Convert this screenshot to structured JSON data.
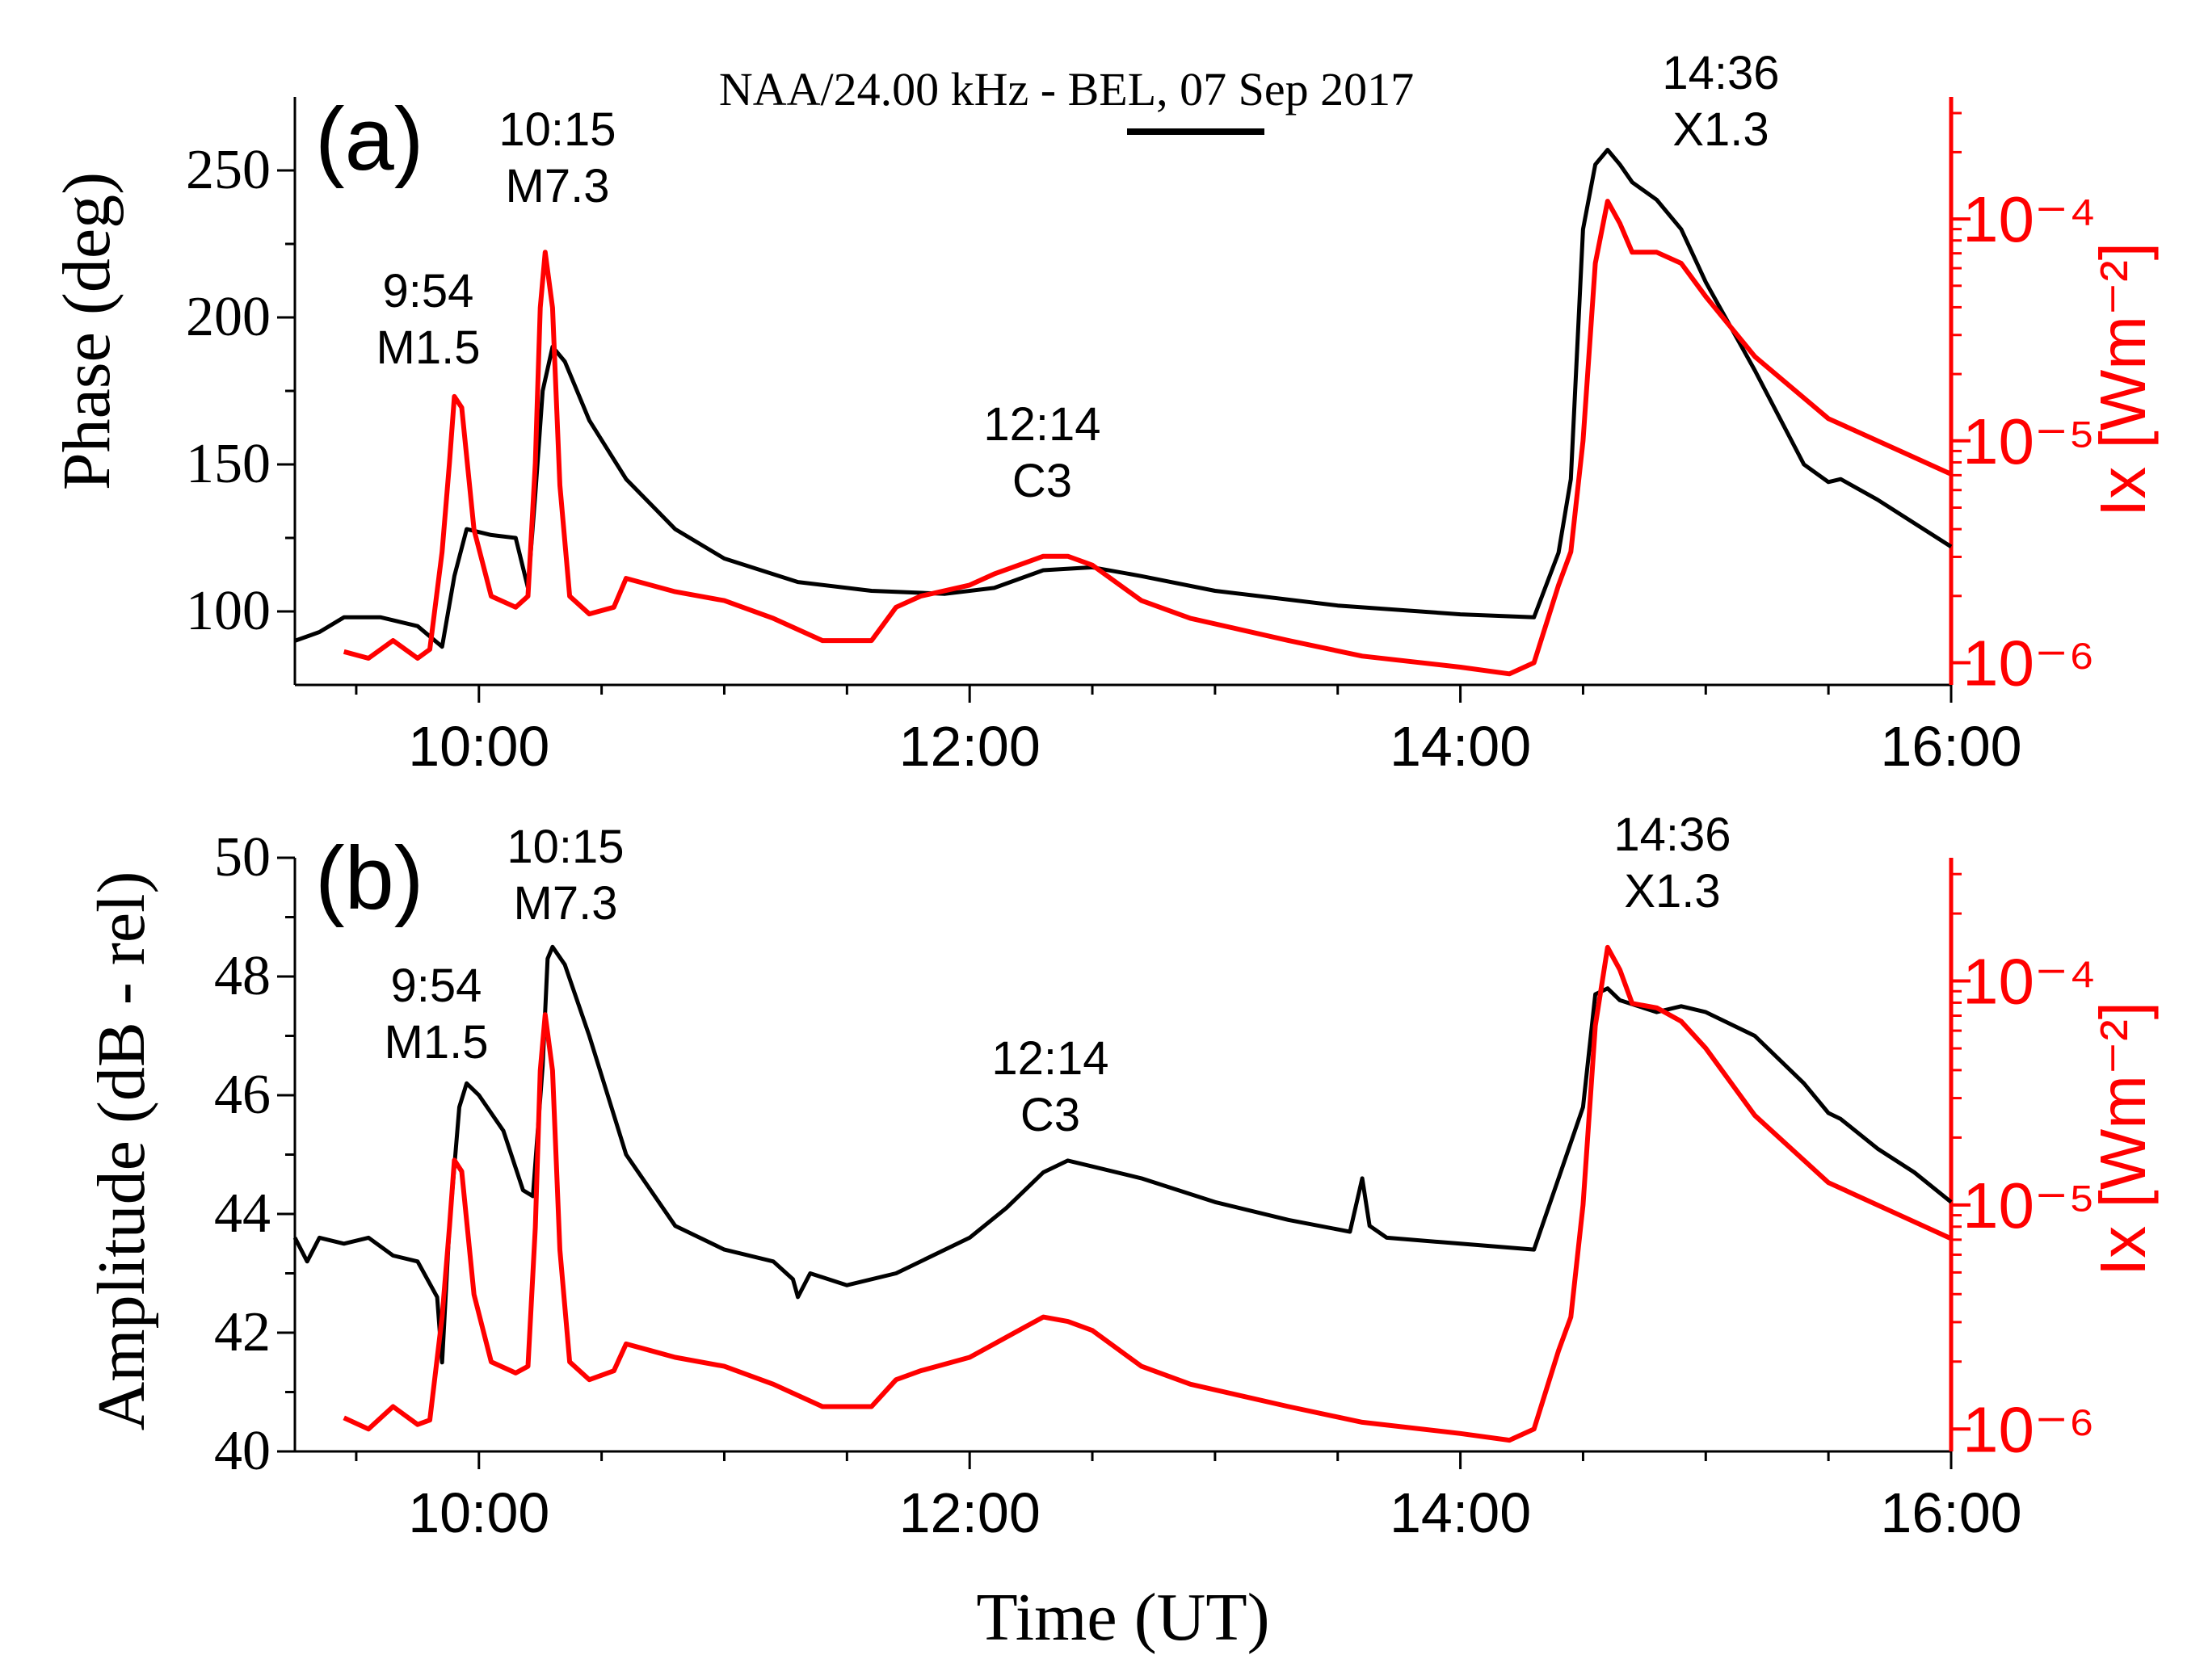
{
  "figure_title": "NAA/24.00 kHz - BEL,  07 Sep 2017",
  "x_axis_label": "Time (UT)",
  "colors": {
    "vlf": "#000000",
    "xray": "#ff0000"
  },
  "chart_data": [
    {
      "type": "line",
      "panel_label": "(a)",
      "xlabel": "Time (UT)",
      "ylabel": "Phase (deg)",
      "y2label": "Ix [Wm⁻²]",
      "xlim": [
        9.25,
        16.0
      ],
      "ylim": [
        75,
        275
      ],
      "y2lim_log10": [
        -6.1,
        -3.45
      ],
      "x_ticks": [
        "10:00",
        "12:00",
        "14:00",
        "16:00"
      ],
      "y_ticks": [
        100,
        150,
        200,
        250
      ],
      "y2_ticks": [
        "10⁻⁶",
        "10⁻⁵",
        "10⁻⁴"
      ],
      "annotations": [
        {
          "time": "9:54",
          "class": "M1.5"
        },
        {
          "time": "10:15",
          "class": "M7.3"
        },
        {
          "time": "12:14",
          "class": "C3"
        },
        {
          "time": "14:36",
          "class": "X1.3"
        }
      ],
      "series": [
        {
          "name": "Phase",
          "axis": "left",
          "x": [
            9.25,
            9.35,
            9.45,
            9.6,
            9.75,
            9.85,
            9.9,
            9.95,
            10.05,
            10.15,
            10.2,
            10.23,
            10.26,
            10.3,
            10.35,
            10.45,
            10.6,
            10.8,
            11.0,
            11.3,
            11.6,
            11.9,
            12.1,
            12.3,
            12.5,
            12.7,
            13.0,
            13.5,
            14.0,
            14.3,
            14.4,
            14.45,
            14.5,
            14.55,
            14.6,
            14.65,
            14.7,
            14.8,
            14.9,
            15.0,
            15.2,
            15.4,
            15.5,
            15.55,
            15.7,
            16.0
          ],
          "values": [
            90,
            93,
            98,
            98,
            95,
            88,
            112,
            128,
            126,
            125,
            108,
            140,
            175,
            190,
            185,
            165,
            145,
            128,
            118,
            110,
            107,
            106,
            108,
            114,
            115,
            112,
            107,
            102,
            99,
            98,
            120,
            145,
            230,
            252,
            257,
            252,
            246,
            240,
            230,
            212,
            182,
            150,
            144,
            145,
            138,
            122
          ]
        },
        {
          "name": "Ix",
          "axis": "right",
          "x": [
            9.45,
            9.55,
            9.65,
            9.75,
            9.8,
            9.85,
            9.88,
            9.9,
            9.93,
            9.98,
            10.05,
            10.15,
            10.2,
            10.23,
            10.25,
            10.27,
            10.3,
            10.33,
            10.37,
            10.45,
            10.55,
            10.6,
            10.7,
            10.8,
            11.0,
            11.2,
            11.4,
            11.6,
            11.7,
            11.8,
            12.0,
            12.1,
            12.2,
            12.3,
            12.4,
            12.5,
            12.7,
            12.9,
            13.1,
            13.3,
            13.6,
            14.0,
            14.2,
            14.3,
            14.4,
            14.45,
            14.5,
            14.55,
            14.6,
            14.65,
            14.7,
            14.8,
            14.9,
            15.0,
            15.2,
            15.5,
            15.8,
            16.0
          ],
          "values": [
            -5.95,
            -5.98,
            -5.9,
            -5.98,
            -5.94,
            -5.5,
            -5.1,
            -4.8,
            -4.85,
            -5.4,
            -5.7,
            -5.75,
            -5.7,
            -5.1,
            -4.4,
            -4.15,
            -4.4,
            -5.2,
            -5.7,
            -5.78,
            -5.75,
            -5.62,
            -5.65,
            -5.68,
            -5.72,
            -5.8,
            -5.9,
            -5.9,
            -5.75,
            -5.7,
            -5.65,
            -5.6,
            -5.56,
            -5.52,
            -5.52,
            -5.56,
            -5.72,
            -5.8,
            -5.85,
            -5.9,
            -5.97,
            -6.02,
            -6.05,
            -6.0,
            -5.65,
            -5.5,
            -5.0,
            -4.2,
            -3.92,
            -4.02,
            -4.15,
            -4.15,
            -4.2,
            -4.35,
            -4.62,
            -4.9,
            -5.05,
            -5.15
          ]
        }
      ]
    },
    {
      "type": "line",
      "panel_label": "(b)",
      "xlabel": "Time (UT)",
      "ylabel": "Amplitude (dB - rel)",
      "y2label": "Ix [Wm⁻²]",
      "xlim": [
        9.25,
        16.0
      ],
      "ylim": [
        40,
        50
      ],
      "y2lim_log10": [
        -6.1,
        -3.45
      ],
      "x_ticks": [
        "10:00",
        "12:00",
        "14:00",
        "16:00"
      ],
      "y_ticks": [
        40,
        42,
        44,
        46,
        48,
        50
      ],
      "y2_ticks": [
        "10⁻⁶",
        "10⁻⁵",
        "10⁻⁴"
      ],
      "annotations": [
        {
          "time": "9:54",
          "class": "M1.5"
        },
        {
          "time": "10:15",
          "class": "M7.3"
        },
        {
          "time": "12:14",
          "class": "C3"
        },
        {
          "time": "14:36",
          "class": "X1.3"
        }
      ],
      "series": [
        {
          "name": "Amplitude",
          "axis": "left",
          "x": [
            9.25,
            9.3,
            9.35,
            9.45,
            9.55,
            9.65,
            9.75,
            9.83,
            9.85,
            9.88,
            9.92,
            9.95,
            10.0,
            10.1,
            10.18,
            10.22,
            10.26,
            10.28,
            10.3,
            10.35,
            10.45,
            10.6,
            10.8,
            11.0,
            11.2,
            11.28,
            11.3,
            11.35,
            11.5,
            11.7,
            12.0,
            12.15,
            12.3,
            12.4,
            12.5,
            12.7,
            13.0,
            13.3,
            13.55,
            13.6,
            13.63,
            13.7,
            14.0,
            14.3,
            14.4,
            14.5,
            14.55,
            14.6,
            14.65,
            14.8,
            14.9,
            15.0,
            15.2,
            15.4,
            15.5,
            15.55,
            15.7,
            15.85,
            16.0
          ],
          "values": [
            43.6,
            43.2,
            43.6,
            43.5,
            43.6,
            43.3,
            43.2,
            42.6,
            41.5,
            43.8,
            45.8,
            46.2,
            46.0,
            45.4,
            44.4,
            44.3,
            46.5,
            48.3,
            48.5,
            48.2,
            47.0,
            45.0,
            43.8,
            43.4,
            43.2,
            42.9,
            42.6,
            43.0,
            42.8,
            43.0,
            43.6,
            44.1,
            44.7,
            44.9,
            44.8,
            44.6,
            44.2,
            43.9,
            43.7,
            44.6,
            43.8,
            43.6,
            43.5,
            43.4,
            44.6,
            45.8,
            47.7,
            47.8,
            47.6,
            47.4,
            47.5,
            47.4,
            47.0,
            46.2,
            45.7,
            45.6,
            45.1,
            44.7,
            44.2
          ]
        },
        {
          "name": "Ix",
          "axis": "right",
          "x": [
            9.45,
            9.55,
            9.65,
            9.75,
            9.8,
            9.85,
            9.88,
            9.9,
            9.93,
            9.98,
            10.05,
            10.15,
            10.2,
            10.23,
            10.25,
            10.27,
            10.3,
            10.33,
            10.37,
            10.45,
            10.55,
            10.6,
            10.7,
            10.8,
            11.0,
            11.2,
            11.4,
            11.6,
            11.7,
            11.8,
            12.0,
            12.1,
            12.2,
            12.3,
            12.4,
            12.5,
            12.7,
            12.9,
            13.1,
            13.3,
            13.6,
            14.0,
            14.2,
            14.3,
            14.4,
            14.45,
            14.5,
            14.55,
            14.6,
            14.65,
            14.7,
            14.8,
            14.9,
            15.0,
            15.2,
            15.5,
            15.8,
            16.0
          ],
          "values": [
            -5.95,
            -6.0,
            -5.9,
            -5.98,
            -5.96,
            -5.5,
            -5.1,
            -4.8,
            -4.85,
            -5.4,
            -5.7,
            -5.75,
            -5.72,
            -5.1,
            -4.4,
            -4.15,
            -4.4,
            -5.2,
            -5.7,
            -5.78,
            -5.74,
            -5.62,
            -5.65,
            -5.68,
            -5.72,
            -5.8,
            -5.9,
            -5.9,
            -5.78,
            -5.74,
            -5.68,
            -5.62,
            -5.56,
            -5.5,
            -5.52,
            -5.56,
            -5.72,
            -5.8,
            -5.85,
            -5.9,
            -5.97,
            -6.02,
            -6.05,
            -6.0,
            -5.65,
            -5.5,
            -5.0,
            -4.2,
            -3.85,
            -3.95,
            -4.1,
            -4.12,
            -4.18,
            -4.3,
            -4.6,
            -4.9,
            -5.05,
            -5.15
          ]
        }
      ]
    }
  ]
}
